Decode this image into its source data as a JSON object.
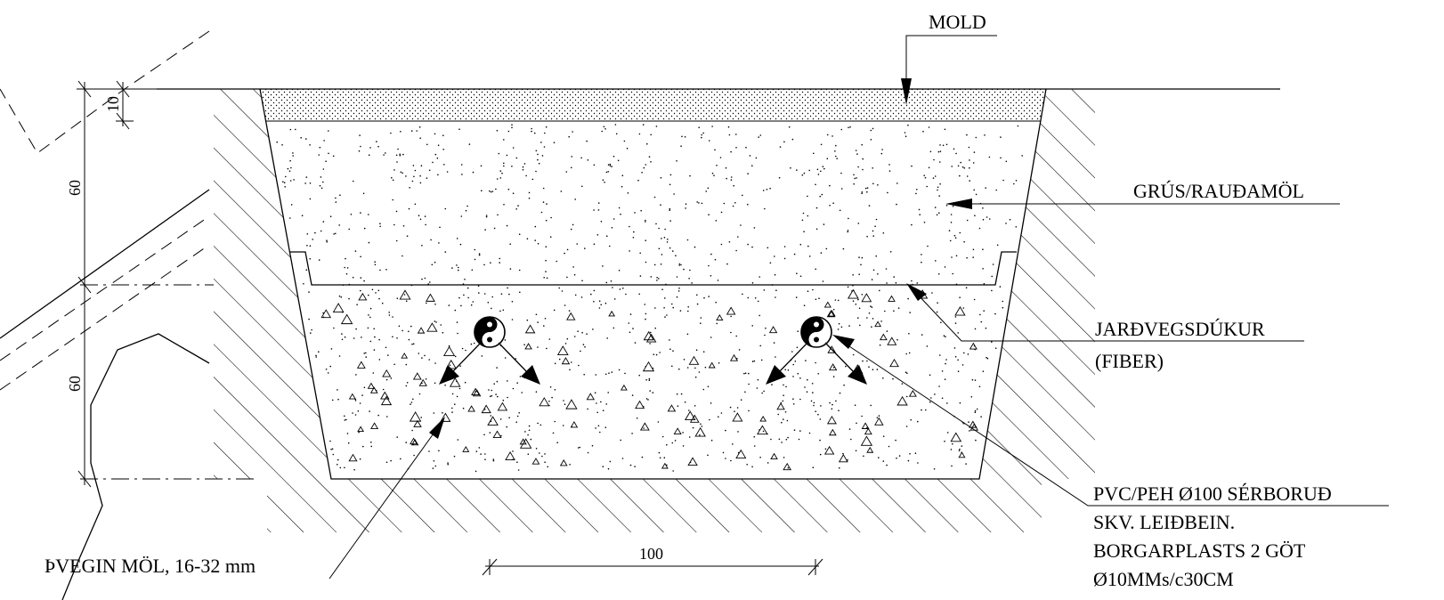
{
  "labels": {
    "mold": "MOLD",
    "grus": "GRÚS/RAUÐAMÖL",
    "jardvegsdukur_1": "JARÐVEGSDÚKUR",
    "jardvegsdukur_2": "(FIBER)",
    "pvc_1": "PVC/PEH Ø100 SÉRBORUÐ",
    "pvc_2": "SKV.  LEIÐBEIN.",
    "pvc_3": "BORGARPLASTS 2 GÖT",
    "pvc_4": "Ø10MMs/c30CM",
    "thvegin": "ÞVEGIN MÖL, 16-32 mm"
  },
  "dimensions": {
    "top_layer": "10",
    "upper": "60",
    "lower": "60",
    "bottom_width": "100"
  }
}
